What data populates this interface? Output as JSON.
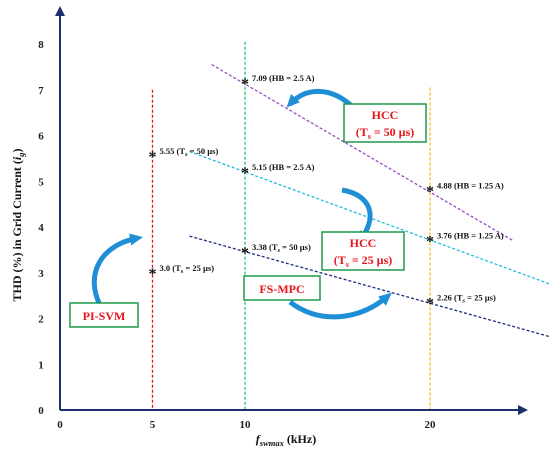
{
  "chart_data": {
    "type": "scatter",
    "xlabel": {
      "main": "f",
      "sub": "swmax",
      "unit": " (kHz)"
    },
    "ylabel": {
      "pre": "THD (%) in Grid Current (",
      "var": "i",
      "sub": "g",
      "post": ")"
    },
    "xlim": [
      0,
      25
    ],
    "ylim": [
      0,
      8.5
    ],
    "x_ticks": [
      0,
      5,
      10,
      20
    ],
    "y_ticks": [
      0,
      1,
      2,
      3,
      4,
      5,
      6,
      7,
      8
    ],
    "vertical_refs": [
      {
        "x": 5,
        "color": "#e8141c"
      },
      {
        "x": 10,
        "color": "#22c07a"
      },
      {
        "x": 20,
        "color": "#f0c020"
      }
    ],
    "trend_lines": [
      {
        "name": "HCC (Ts = 50 µs)",
        "color": "#9a4ec0",
        "from": [
          8.2,
          7.55
        ],
        "to": [
          24.5,
          3.7
        ]
      },
      {
        "name": "HCC (Ts = 25 µs)",
        "color": "#1ebfd8",
        "from": [
          7,
          5.65
        ],
        "to": [
          26.5,
          2.75
        ]
      },
      {
        "name": "FS-MPC",
        "color": "#1e2f82",
        "from": [
          7,
          3.8
        ],
        "to": [
          26.5,
          1.6
        ]
      }
    ],
    "points": [
      {
        "x": 5,
        "y": 5.55,
        "value": "5.55",
        "sub": "",
        "note": "(T",
        "note_sub": "s",
        "note_end": " = 50 µs)"
      },
      {
        "x": 5,
        "y": 3.0,
        "value": "3.0",
        "sub": "",
        "note": "(T",
        "note_sub": "s",
        "note_end": " = 25 µs)"
      },
      {
        "x": 10,
        "y": 7.15,
        "value": "7.09",
        "note": "(HB = 2.5 A)",
        "note_sub": "",
        "note_end": ""
      },
      {
        "x": 10,
        "y": 5.2,
        "value": "5.15",
        "note": "(HB = 2.5 A)",
        "note_sub": "",
        "note_end": ""
      },
      {
        "x": 10,
        "y": 3.45,
        "value": "3.38",
        "note": "(T",
        "note_sub": "s",
        "note_end": " = 50 µs)"
      },
      {
        "x": 20,
        "y": 4.8,
        "value": "4.88",
        "note": "(HB = 1.25 A)",
        "note_sub": "",
        "note_end": ""
      },
      {
        "x": 20,
        "y": 3.7,
        "value": "3.76",
        "note": "(HB = 1.25 A)",
        "note_sub": "",
        "note_end": ""
      },
      {
        "x": 20,
        "y": 2.35,
        "value": "2.26",
        "note": "(T",
        "note_sub": "s",
        "note_end": " = 25 µs)"
      }
    ],
    "boxes": [
      {
        "id": "pi-svm",
        "line1": "PI-SVM",
        "line2": "",
        "line2_sub": "",
        "line2_end": ""
      },
      {
        "id": "fs-mpc",
        "line1": "FS-MPC",
        "line2": "",
        "line2_sub": "",
        "line2_end": ""
      },
      {
        "id": "hcc-25",
        "line1": "HCC",
        "line2": "(T",
        "line2_sub": "s",
        "line2_end": " = 25 µs)"
      },
      {
        "id": "hcc-50",
        "line1": "HCC",
        "line2": "(T",
        "line2_sub": "s",
        "line2_end": " = 50 µs)"
      }
    ],
    "grid": false,
    "colors": {
      "axis": "#1e2f6e",
      "box_border": "#1f9a4a",
      "box_text": "#e8141c",
      "arrow": "#1e8fd6"
    }
  }
}
